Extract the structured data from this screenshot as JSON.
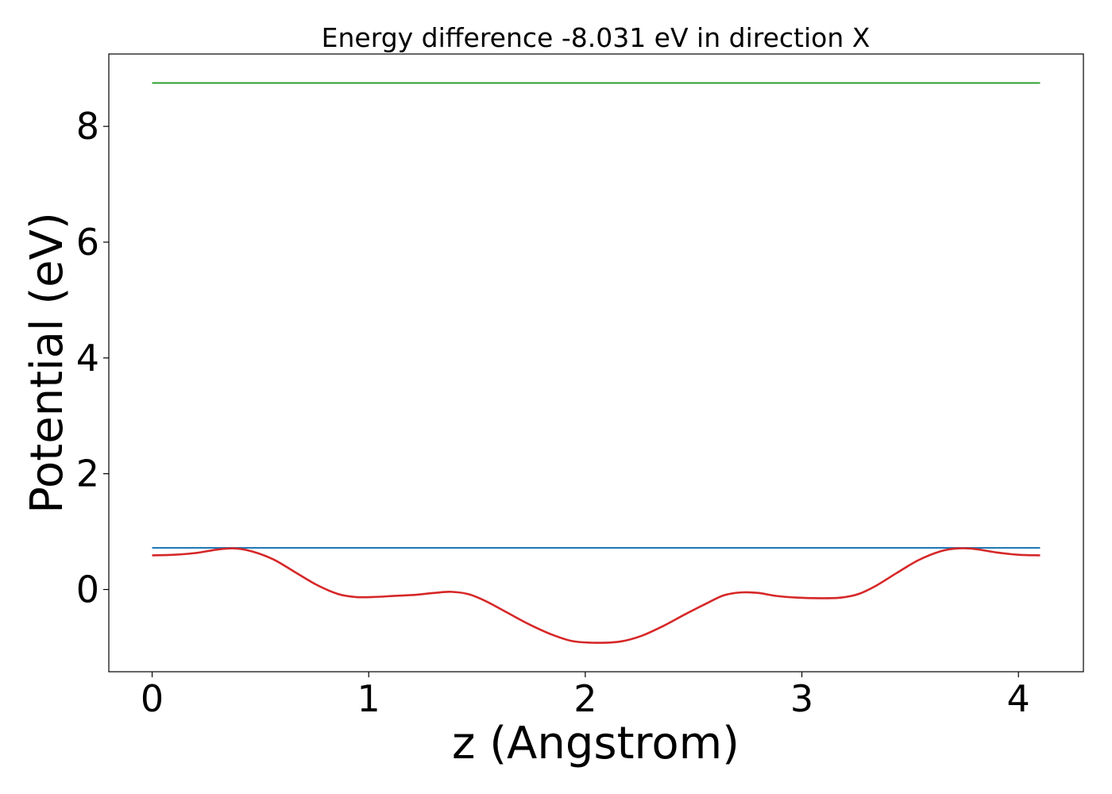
{
  "chart_data": {
    "type": "line",
    "title": "Energy difference -8.031 eV in direction X",
    "xlabel": "z (Angstrom)",
    "ylabel": "Potential (eV)",
    "xlim": [
      -0.2,
      4.3
    ],
    "ylim": [
      -1.42,
      9.25
    ],
    "xticks": [
      0,
      1,
      2,
      3,
      4
    ],
    "yticks": [
      0,
      2,
      4,
      6,
      8
    ],
    "grid": false,
    "series": [
      {
        "kind": "hline",
        "color": "#2ca02c",
        "x": [
          0,
          4.1
        ],
        "y": [
          8.75,
          8.75
        ]
      },
      {
        "kind": "hline",
        "color": "#1f77b4",
        "x": [
          0,
          4.1
        ],
        "y": [
          0.72,
          0.72
        ]
      },
      {
        "kind": "curve",
        "color": "#d62728",
        "x": [
          0,
          0.1,
          0.2,
          0.3,
          0.38,
          0.46,
          0.56,
          0.66,
          0.76,
          0.86,
          0.94,
          1.02,
          1.12,
          1.22,
          1.3,
          1.38,
          1.46,
          1.54,
          1.64,
          1.74,
          1.84,
          1.94,
          2.05,
          2.16,
          2.26,
          2.36,
          2.46,
          2.56,
          2.64,
          2.72,
          2.8,
          2.88,
          2.98,
          3.08,
          3.18,
          3.26,
          3.34,
          3.44,
          3.54,
          3.64,
          3.72,
          3.8,
          3.9,
          4.0,
          4.1
        ],
        "y": [
          0.59,
          0.6,
          0.63,
          0.69,
          0.71,
          0.66,
          0.52,
          0.3,
          0.08,
          -0.08,
          -0.13,
          -0.13,
          -0.11,
          -0.09,
          -0.06,
          -0.04,
          -0.08,
          -0.2,
          -0.4,
          -0.6,
          -0.77,
          -0.89,
          -0.92,
          -0.9,
          -0.8,
          -0.63,
          -0.43,
          -0.24,
          -0.1,
          -0.05,
          -0.06,
          -0.11,
          -0.14,
          -0.15,
          -0.14,
          -0.08,
          0.06,
          0.29,
          0.51,
          0.66,
          0.71,
          0.7,
          0.64,
          0.6,
          0.59
        ]
      }
    ]
  }
}
